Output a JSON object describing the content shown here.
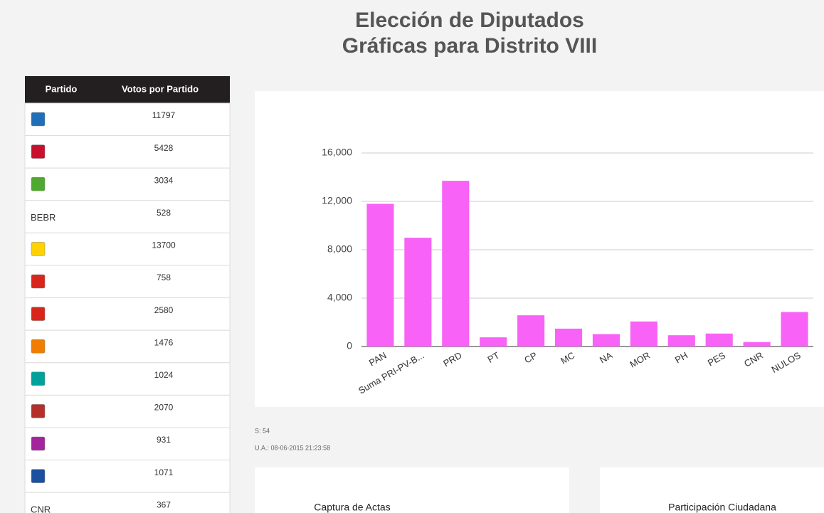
{
  "header": {
    "title": [
      "Elección de Diputados",
      "Gráficas para Distrito VIII"
    ]
  },
  "table": {
    "columns": [
      "Partido",
      "Votos por Partido"
    ],
    "rows": [
      {
        "votes": 11797
      },
      {
        "votes": 5428
      },
      {
        "votes": 3034
      },
      {
        "label": "BEBR",
        "votes": 528
      },
      {
        "votes": 13700
      },
      {
        "votes": 758
      },
      {
        "votes": 2580
      },
      {
        "votes": 1476
      },
      {
        "votes": 1024
      },
      {
        "votes": 2070
      },
      {
        "votes": 931
      },
      {
        "votes": 1071
      },
      {
        "label": "CNR",
        "votes": 367
      }
    ]
  },
  "chart_data": {
    "type": "bar",
    "categories": [
      "PAN",
      "Suma PRI-PV-B...",
      "PRD",
      "PT",
      "CP",
      "MC",
      "NA",
      "MOR",
      "PH",
      "PES",
      "CNR",
      "NULOS"
    ],
    "values": [
      11797,
      8990,
      13700,
      758,
      2580,
      1476,
      1024,
      2070,
      931,
      1071,
      367,
      2850
    ],
    "color": "#f862f6",
    "ylim": [
      0,
      16000
    ],
    "yticks": [
      0,
      {
        "value": 4000,
        "label": "4,000"
      },
      {
        "value": 8000,
        "label": "8,000"
      },
      {
        "value": 12000,
        "label": "12,000"
      },
      {
        "value": 16000,
        "label": "16,000"
      }
    ],
    "grid": true
  },
  "footer": {
    "seats": "S: 54",
    "updated": "U.A.: 08-06-2015 21:23:58",
    "panels": [
      "Captura de Actas",
      "Participación Ciudadana"
    ]
  }
}
